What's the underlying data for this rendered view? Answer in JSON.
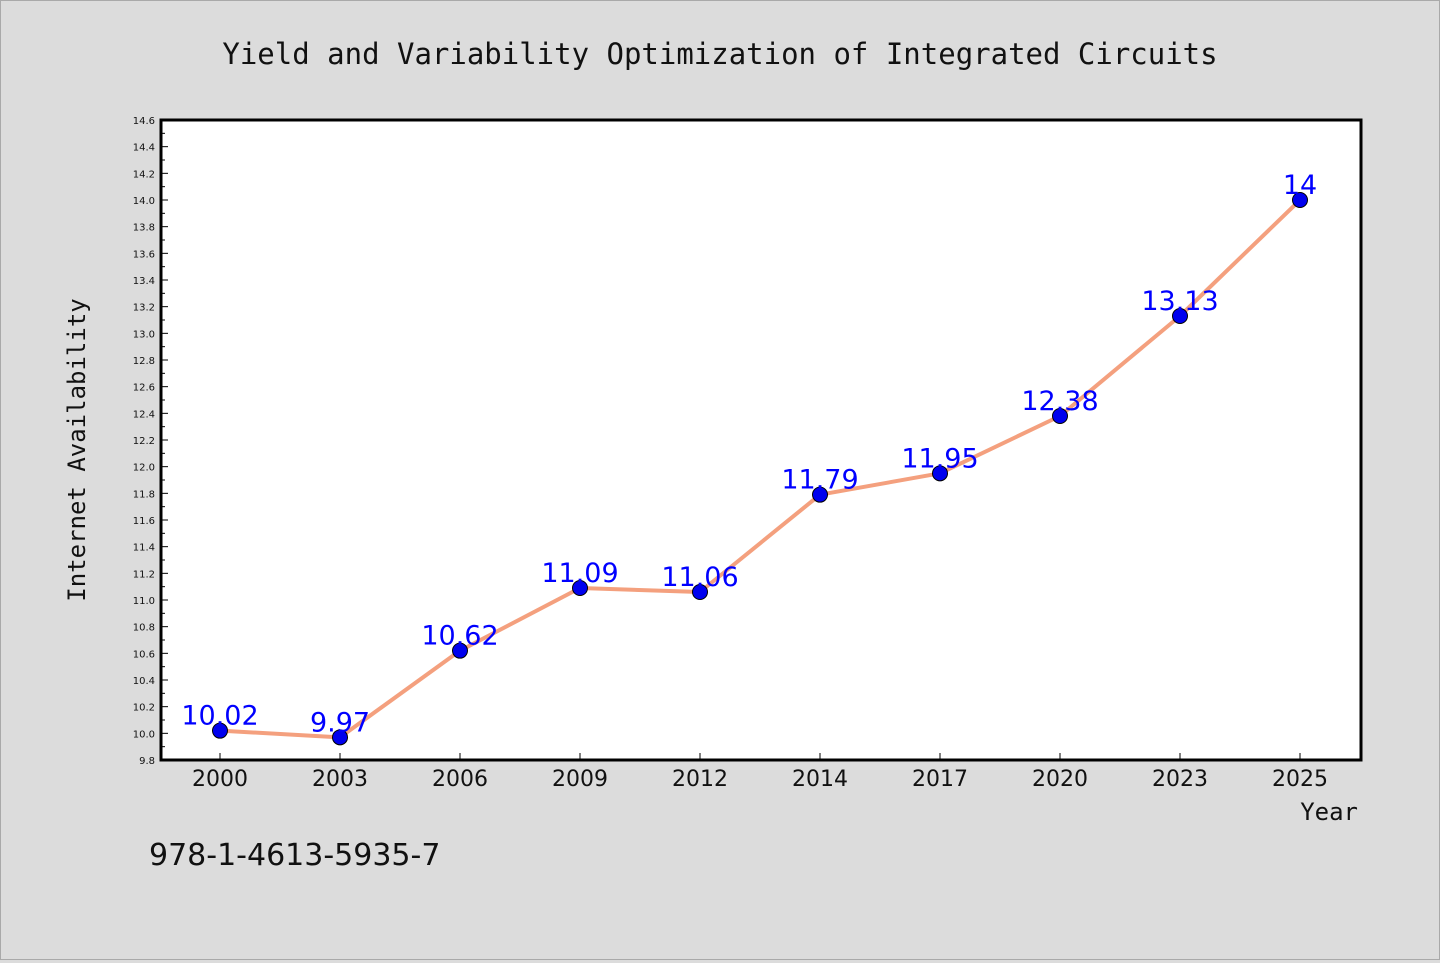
{
  "chart_data": {
    "type": "line",
    "title": "Yield and Variability Optimization of Integrated Circuits",
    "xlabel": "Year",
    "ylabel": "Internet Availability",
    "categories": [
      "2000",
      "2003",
      "2006",
      "2009",
      "2012",
      "2014",
      "2017",
      "2020",
      "2023",
      "2025"
    ],
    "values": [
      10.02,
      9.97,
      10.62,
      11.09,
      11.06,
      11.79,
      11.95,
      12.38,
      13.13,
      14
    ],
    "data_labels": [
      "10.02",
      "9.97",
      "10.62",
      "11.09",
      "11.06",
      "11.79",
      "11.95",
      "12.38",
      "13.13",
      "14"
    ],
    "ylim": [
      9.8,
      14.6
    ],
    "yticks": [
      "9.8",
      "10.0",
      "10.2",
      "10.4",
      "10.6",
      "10.8",
      "11.0",
      "11.2",
      "11.4",
      "11.6",
      "11.8",
      "12.0",
      "12.2",
      "12.4",
      "12.6",
      "12.8",
      "13.0",
      "13.2",
      "13.4",
      "13.6",
      "13.8",
      "14.0",
      "14.2",
      "14.4",
      "14.6"
    ],
    "grid": false,
    "line_color": "#f4a07e",
    "marker_color": "#0000ee",
    "label_color": "#0000ff",
    "plot_background": "#ffffff",
    "figure_background": "#dcdcdc"
  },
  "footer": {
    "isbn": "978-1-4613-5935-7"
  }
}
